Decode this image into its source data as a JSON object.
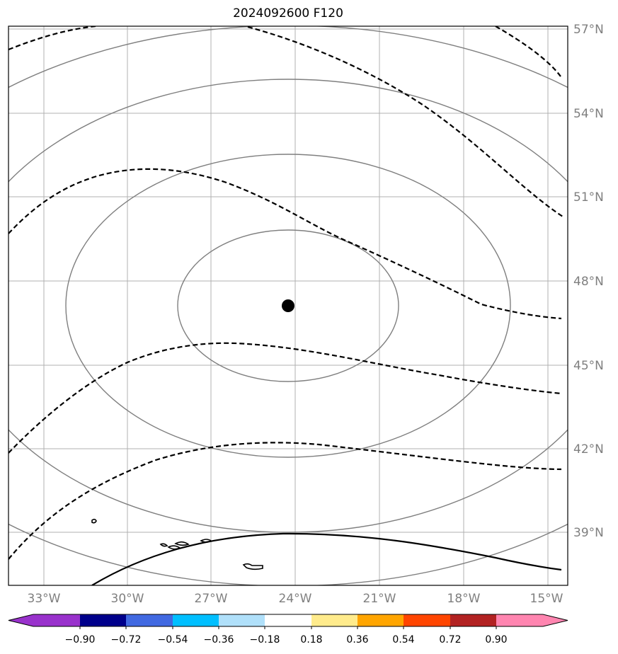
{
  "title": "2024092600 F120",
  "map": {
    "lon_labels": [
      "33°W",
      "30°W",
      "27°W",
      "24°W",
      "21°W",
      "18°W",
      "15°W"
    ],
    "lat_labels": [
      "57°N",
      "54°N",
      "51°N",
      "48°N",
      "45°N",
      "42°N",
      "39°N"
    ],
    "grid_color": "#b0b0b0",
    "ring_color": "#7f7f7f",
    "contour_color": "#000000",
    "center_marker": {
      "lon": -24.3,
      "lat": 47.1,
      "label": ""
    }
  },
  "colorbar": {
    "colors": [
      "#9932cc",
      "#00008b",
      "#4169e1",
      "#00bfff",
      "#b0e0fa",
      "#ffffff",
      "#ffeb8c",
      "#ffa500",
      "#ff4500",
      "#b22222",
      "#ff85b0"
    ],
    "ticks": [
      "−0.90",
      "−0.72",
      "−0.54",
      "−0.36",
      "−0.18",
      "0.18",
      "0.36",
      "0.54",
      "0.72",
      "0.90"
    ]
  }
}
